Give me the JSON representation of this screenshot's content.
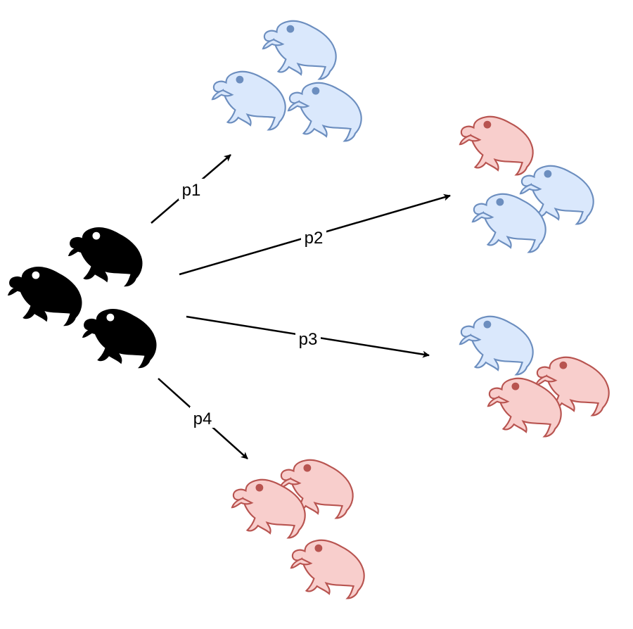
{
  "colors": {
    "source_fill": "#000000",
    "source_stroke": "#000000",
    "blue_fill": "#dae8fc",
    "blue_stroke": "#6c8ebf",
    "red_fill": "#f8cecc",
    "red_stroke": "#b85450",
    "arrow": "#000000"
  },
  "icon": "sloth-icon",
  "source_group": {
    "count": 3,
    "color": "black"
  },
  "edges": [
    {
      "label": "p1",
      "target": {
        "blue": 3,
        "red": 0
      }
    },
    {
      "label": "p2",
      "target": {
        "blue": 2,
        "red": 1
      }
    },
    {
      "label": "p3",
      "target": {
        "blue": 1,
        "red": 2
      }
    },
    {
      "label": "p4",
      "target": {
        "blue": 0,
        "red": 3
      }
    }
  ]
}
